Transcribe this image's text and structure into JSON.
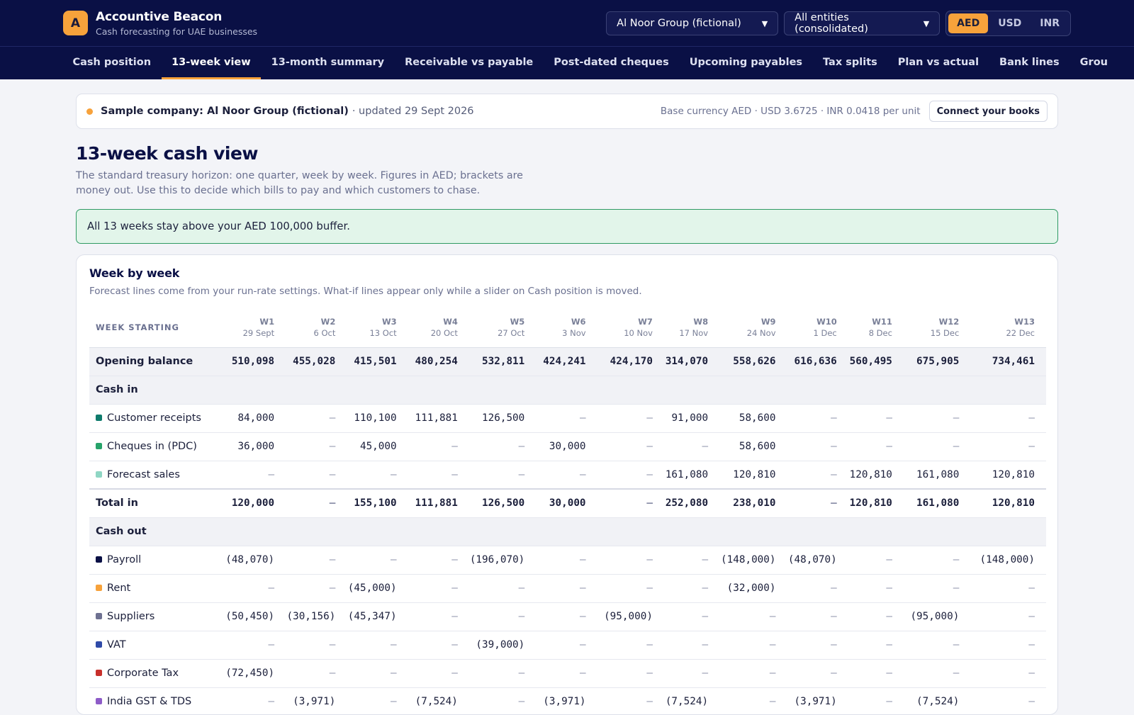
{
  "app": {
    "logo_letter": "A",
    "name": "Accountive Beacon",
    "tagline": "Cash forecasting for UAE businesses"
  },
  "controls": {
    "company_select": "Al Noor Group (fictional)",
    "entity_select": "All entities (consolidated)",
    "currencies": [
      "AED",
      "USD",
      "INR"
    ],
    "active_currency": "AED"
  },
  "nav": {
    "tabs": [
      "Cash position",
      "13-week view",
      "13-month summary",
      "Receivable vs payable",
      "Post-dated cheques",
      "Upcoming payables",
      "Tax splits",
      "Plan vs actual",
      "Bank lines",
      "Grou"
    ],
    "active": "13-week view"
  },
  "banner": {
    "company": "Sample company: Al Noor Group (fictional)",
    "updated": "· updated 29 Sept 2026",
    "rates": "Base currency AED · USD 3.6725 · INR 0.0418 per unit",
    "connect_label": "Connect your books"
  },
  "page": {
    "title": "13-week cash view",
    "description": "The standard treasury horizon: one quarter, week by week. Figures in AED; brackets are money out. Use this to decide which bills to pay and which customers to chase.",
    "alert": "All 13 weeks stay above your AED 100,000 buffer."
  },
  "card": {
    "title": "Week by week",
    "subtitle": "Forecast lines come from your run-rate settings. What-if lines appear only while a slider on Cash position is moved."
  },
  "table": {
    "label_header": "WEEK STARTING",
    "weeks": [
      {
        "label": "W1",
        "date": "29 Sept"
      },
      {
        "label": "W2",
        "date": "6 Oct"
      },
      {
        "label": "W3",
        "date": "13 Oct"
      },
      {
        "label": "W4",
        "date": "20 Oct"
      },
      {
        "label": "W5",
        "date": "27 Oct"
      },
      {
        "label": "W6",
        "date": "3 Nov"
      },
      {
        "label": "W7",
        "date": "10 Nov"
      },
      {
        "label": "W8",
        "date": "17 Nov"
      },
      {
        "label": "W9",
        "date": "24 Nov"
      },
      {
        "label": "W10",
        "date": "1 Dec"
      },
      {
        "label": "W11",
        "date": "8 Dec"
      },
      {
        "label": "W12",
        "date": "15 Dec"
      },
      {
        "label": "W13",
        "date": "22 Dec"
      }
    ],
    "rows": [
      {
        "kind": "opening",
        "label": "Opening balance",
        "values": [
          "510,098",
          "455,028",
          "415,501",
          "480,254",
          "532,811",
          "424,241",
          "424,170",
          "314,070",
          "558,626",
          "616,636",
          "560,495",
          "675,905",
          "734,461"
        ]
      },
      {
        "kind": "section",
        "label": "Cash in"
      },
      {
        "kind": "line",
        "label": "Customer receipts",
        "color": "#0f7b6c",
        "values": [
          "84,000",
          "–",
          "110,100",
          "111,881",
          "126,500",
          "–",
          "–",
          "91,000",
          "58,600",
          "–",
          "–",
          "–",
          "–"
        ]
      },
      {
        "kind": "line",
        "label": "Cheques in (PDC)",
        "color": "#27a36a",
        "values": [
          "36,000",
          "–",
          "45,000",
          "–",
          "–",
          "30,000",
          "–",
          "–",
          "58,600",
          "–",
          "–",
          "–",
          "–"
        ]
      },
      {
        "kind": "line",
        "label": "Forecast sales",
        "color": "#8fd6c4",
        "values": [
          "–",
          "–",
          "–",
          "–",
          "–",
          "–",
          "–",
          "161,080",
          "120,810",
          "–",
          "120,810",
          "161,080",
          "120,810"
        ]
      },
      {
        "kind": "total",
        "label": "Total in",
        "values": [
          "120,000",
          "–",
          "155,100",
          "111,881",
          "126,500",
          "30,000",
          "–",
          "252,080",
          "238,010",
          "–",
          "120,810",
          "161,080",
          "120,810"
        ]
      },
      {
        "kind": "section",
        "label": "Cash out"
      },
      {
        "kind": "line",
        "label": "Payroll",
        "color": "#0a1045",
        "values": [
          "(48,070)",
          "–",
          "–",
          "–",
          "(196,070)",
          "–",
          "–",
          "–",
          "(148,000)",
          "(48,070)",
          "–",
          "–",
          "(148,000)"
        ]
      },
      {
        "kind": "line",
        "label": "Rent",
        "color": "#f7a23b",
        "values": [
          "–",
          "–",
          "(45,000)",
          "–",
          "–",
          "–",
          "–",
          "–",
          "(32,000)",
          "–",
          "–",
          "–",
          "–"
        ]
      },
      {
        "kind": "line",
        "label": "Suppliers",
        "color": "#6e7191",
        "values": [
          "(50,450)",
          "(30,156)",
          "(45,347)",
          "–",
          "–",
          "–",
          "(95,000)",
          "–",
          "–",
          "–",
          "–",
          "(95,000)",
          "–"
        ]
      },
      {
        "kind": "line",
        "label": "VAT",
        "color": "#2f4aa8",
        "values": [
          "–",
          "–",
          "–",
          "–",
          "(39,000)",
          "–",
          "–",
          "–",
          "–",
          "–",
          "–",
          "–",
          "–"
        ]
      },
      {
        "kind": "line",
        "label": "Corporate Tax",
        "color": "#c8302b",
        "values": [
          "(72,450)",
          "–",
          "–",
          "–",
          "–",
          "–",
          "–",
          "–",
          "–",
          "–",
          "–",
          "–",
          "–"
        ]
      },
      {
        "kind": "line",
        "label": "India GST & TDS",
        "color": "#8e5cc8",
        "values": [
          "–",
          "(3,971)",
          "–",
          "(7,524)",
          "–",
          "(3,971)",
          "–",
          "(7,524)",
          "–",
          "(3,971)",
          "–",
          "(7,524)",
          "–"
        ]
      }
    ]
  }
}
